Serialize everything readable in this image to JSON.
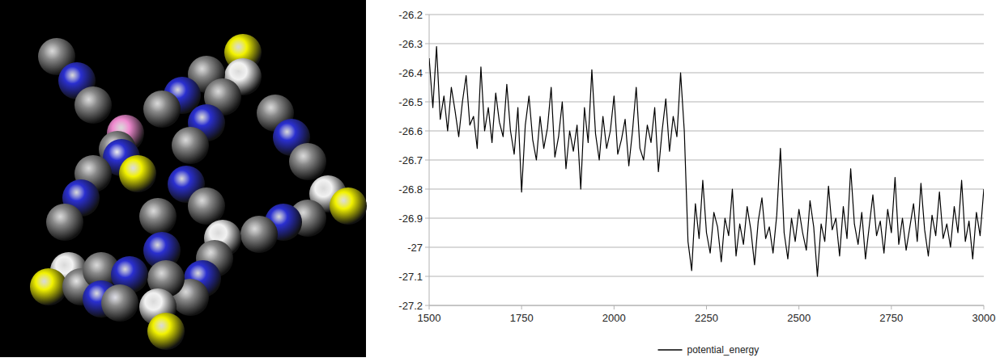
{
  "chart_data": {
    "type": "line",
    "x": [
      1500,
      1510,
      1520,
      1530,
      1540,
      1550,
      1560,
      1570,
      1580,
      1590,
      1600,
      1610,
      1620,
      1630,
      1640,
      1650,
      1660,
      1670,
      1680,
      1690,
      1700,
      1710,
      1720,
      1730,
      1740,
      1750,
      1760,
      1770,
      1780,
      1790,
      1800,
      1810,
      1820,
      1830,
      1840,
      1850,
      1860,
      1870,
      1880,
      1890,
      1900,
      1910,
      1920,
      1930,
      1940,
      1950,
      1960,
      1970,
      1980,
      1990,
      2000,
      2010,
      2020,
      2030,
      2040,
      2050,
      2060,
      2070,
      2080,
      2090,
      2100,
      2110,
      2120,
      2130,
      2140,
      2150,
      2160,
      2170,
      2180,
      2190,
      2200,
      2210,
      2220,
      2230,
      2240,
      2250,
      2260,
      2270,
      2280,
      2290,
      2300,
      2310,
      2320,
      2330,
      2340,
      2350,
      2360,
      2370,
      2380,
      2390,
      2400,
      2410,
      2420,
      2430,
      2440,
      2450,
      2460,
      2470,
      2480,
      2490,
      2500,
      2510,
      2520,
      2530,
      2540,
      2550,
      2560,
      2570,
      2580,
      2590,
      2600,
      2610,
      2620,
      2630,
      2640,
      2650,
      2660,
      2670,
      2680,
      2690,
      2700,
      2710,
      2720,
      2730,
      2740,
      2750,
      2760,
      2770,
      2780,
      2790,
      2800,
      2810,
      2820,
      2830,
      2840,
      2850,
      2860,
      2870,
      2880,
      2890,
      2900,
      2910,
      2920,
      2930,
      2940,
      2950,
      2960,
      2970,
      2980,
      2990,
      3000
    ],
    "series": [
      {
        "name": "potential_energy",
        "color": "#000000",
        "values": [
          -26.35,
          -26.52,
          -26.31,
          -26.56,
          -26.48,
          -26.6,
          -26.45,
          -26.53,
          -26.62,
          -26.5,
          -26.41,
          -26.58,
          -26.55,
          -26.66,
          -26.38,
          -26.6,
          -26.52,
          -26.64,
          -26.47,
          -26.57,
          -26.62,
          -26.44,
          -26.6,
          -26.68,
          -26.52,
          -26.81,
          -26.58,
          -26.48,
          -26.63,
          -26.7,
          -26.55,
          -26.66,
          -26.59,
          -26.45,
          -26.69,
          -26.62,
          -26.5,
          -26.73,
          -26.6,
          -26.67,
          -26.58,
          -26.8,
          -26.52,
          -26.64,
          -26.39,
          -26.61,
          -26.7,
          -26.55,
          -26.66,
          -26.6,
          -26.48,
          -26.68,
          -26.63,
          -26.56,
          -26.72,
          -26.6,
          -26.45,
          -26.66,
          -26.7,
          -26.58,
          -26.64,
          -26.52,
          -26.74,
          -26.6,
          -26.49,
          -26.67,
          -26.55,
          -26.62,
          -26.4,
          -26.6,
          -26.98,
          -27.08,
          -26.85,
          -26.97,
          -26.77,
          -26.95,
          -27.02,
          -26.88,
          -26.93,
          -27.05,
          -26.9,
          -26.96,
          -26.8,
          -27.03,
          -26.92,
          -26.99,
          -26.86,
          -26.94,
          -27.06,
          -26.91,
          -26.83,
          -26.97,
          -26.93,
          -27.02,
          -26.89,
          -26.66,
          -26.95,
          -27.04,
          -26.9,
          -26.98,
          -26.87,
          -26.95,
          -27.01,
          -26.84,
          -26.93,
          -27.1,
          -26.92,
          -26.98,
          -26.79,
          -26.94,
          -26.9,
          -27.03,
          -26.86,
          -26.97,
          -26.73,
          -26.92,
          -26.99,
          -26.88,
          -27.04,
          -26.93,
          -26.82,
          -26.96,
          -26.91,
          -27.02,
          -26.87,
          -26.95,
          -26.76,
          -26.99,
          -26.9,
          -27.01,
          -26.93,
          -26.85,
          -26.98,
          -26.78,
          -26.94,
          -27.03,
          -26.89,
          -26.96,
          -26.81,
          -26.97,
          -26.92,
          -27.0,
          -26.86,
          -26.95,
          -26.77,
          -26.98,
          -26.91,
          -27.04,
          -26.88,
          -26.96,
          -26.8
        ]
      }
    ],
    "xlim": [
      1500,
      3000
    ],
    "xticks": [
      1500,
      1750,
      2000,
      2250,
      2500,
      2750,
      3000
    ],
    "ylim": [
      -27.2,
      -26.2
    ],
    "yticks": [
      -26.2,
      -26.3,
      -26.4,
      -26.5,
      -26.6,
      -26.7,
      -26.8,
      -26.9,
      -27,
      -27.1,
      -27.2
    ],
    "grid": true,
    "legend": "bottom"
  }
}
